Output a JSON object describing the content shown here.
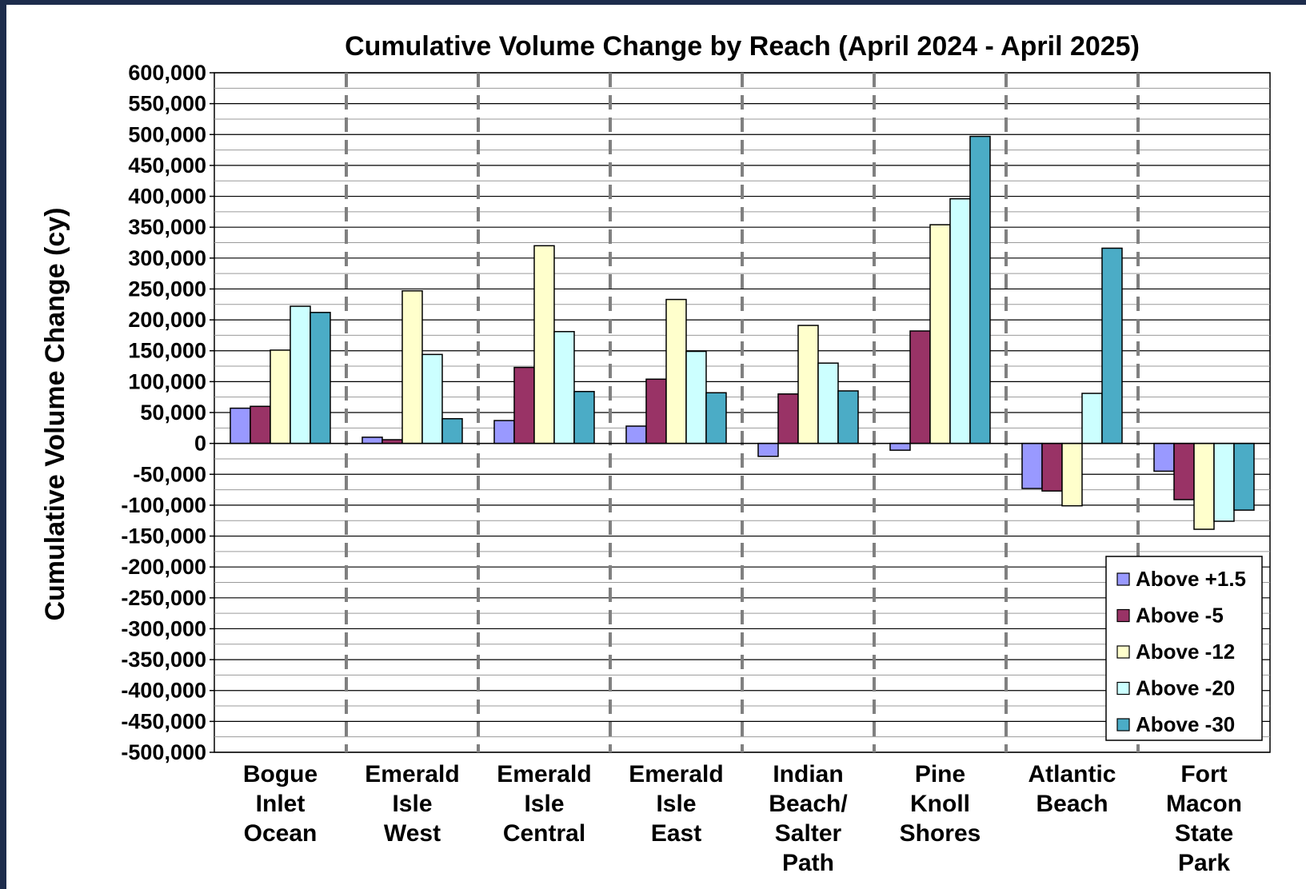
{
  "chart_data": {
    "type": "bar",
    "title": "Cumulative Volume Change by Reach (April 2024 - April 2025)",
    "xlabel": "",
    "ylabel": "Cumulative Volume Change (cy)",
    "ylim": [
      -500000,
      600000
    ],
    "ytick_step": 50000,
    "yticks": [
      "600,000",
      "550,000",
      "500,000",
      "450,000",
      "400,000",
      "350,000",
      "300,000",
      "250,000",
      "200,000",
      "150,000",
      "100,000",
      "50,000",
      "0",
      "-50,000",
      "-100,000",
      "-150,000",
      "-200,000",
      "-250,000",
      "-300,000",
      "-350,000",
      "-400,000",
      "-450,000",
      "-500,000"
    ],
    "grid": true,
    "legend_position": "bottom-right",
    "categories": [
      [
        "Bogue",
        "Inlet",
        "Ocean"
      ],
      [
        "Emerald",
        "Isle",
        "West"
      ],
      [
        "Emerald",
        "Isle",
        "Central"
      ],
      [
        "Emerald",
        "Isle",
        "East"
      ],
      [
        "Indian",
        "Beach/",
        "Salter",
        "Path"
      ],
      [
        "Pine",
        "Knoll",
        "Shores"
      ],
      [
        "Atlantic",
        "Beach"
      ],
      [
        "Fort",
        "Macon",
        "State",
        "Park"
      ]
    ],
    "series": [
      {
        "name": "Above +1.5",
        "color": "#9999ff",
        "values": [
          57000,
          10000,
          37000,
          28000,
          -21000,
          -11000,
          -73000,
          -45000
        ]
      },
      {
        "name": "Above -5",
        "color": "#993366",
        "values": [
          60000,
          6000,
          123000,
          104000,
          80000,
          182000,
          -77000,
          -91000
        ]
      },
      {
        "name": "Above -12",
        "color": "#ffffcc",
        "values": [
          151000,
          247000,
          320000,
          233000,
          191000,
          354000,
          -101000,
          -139000
        ]
      },
      {
        "name": "Above -20",
        "color": "#ccffff",
        "values": [
          222000,
          144000,
          181000,
          149000,
          130000,
          396000,
          81000,
          -126000
        ]
      },
      {
        "name": "Above -30",
        "color": "#4bacc6",
        "values": [
          212000,
          40000,
          84000,
          82000,
          85000,
          497000,
          316000,
          -108000
        ]
      }
    ]
  }
}
